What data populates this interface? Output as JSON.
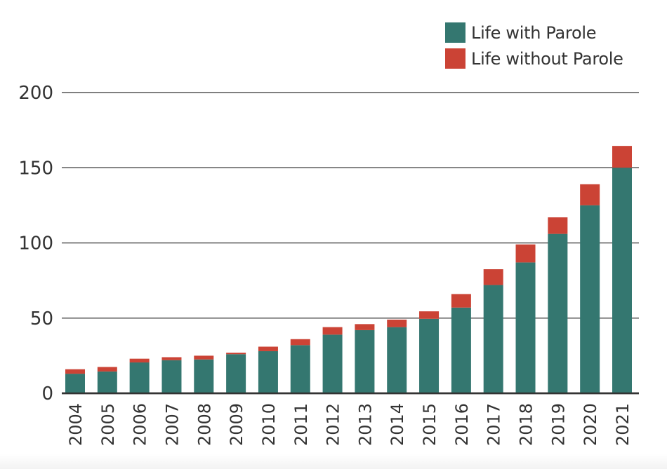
{
  "chart_data": {
    "type": "bar",
    "stacked": true,
    "title": "",
    "xlabel": "",
    "ylabel": "",
    "ylim": [
      0,
      200
    ],
    "yticks": [
      0,
      50,
      100,
      150,
      200
    ],
    "grid": true,
    "legend_position": "top-right",
    "categories": [
      "2004",
      "2005",
      "2006",
      "2007",
      "2008",
      "2009",
      "2010",
      "2011",
      "2012",
      "2013",
      "2014",
      "2015",
      "2016",
      "2017",
      "2018",
      "2019",
      "2020",
      "2021"
    ],
    "series": [
      {
        "name": "Life with Parole",
        "color": "#347770",
        "values": [
          13,
          14.5,
          20.5,
          22,
          22.5,
          26,
          28,
          32,
          39,
          42,
          44,
          49.5,
          57,
          72,
          87,
          106,
          125,
          150
        ]
      },
      {
        "name": "Life without Parole",
        "color": "#CB4335",
        "values": [
          3,
          3,
          2.5,
          2,
          2.5,
          1,
          3,
          4,
          5,
          4,
          5,
          5,
          9,
          10.5,
          12,
          11,
          14,
          14.5
        ]
      }
    ]
  },
  "legend": {
    "items": [
      {
        "label": "Life with Parole",
        "color": "#347770"
      },
      {
        "label": "Life without Parole",
        "color": "#CB4335"
      }
    ]
  },
  "colors": {
    "gridline": "#555555",
    "axis_text": "#333333"
  }
}
